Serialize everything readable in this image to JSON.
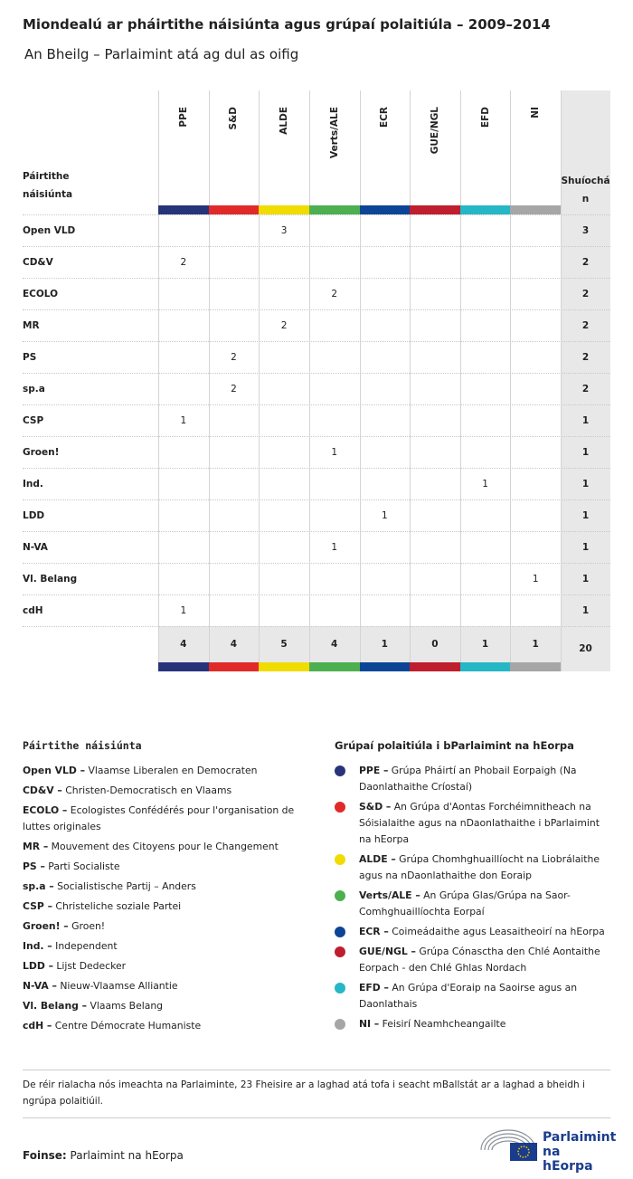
{
  "header": {
    "title": "Miondealú ar pháirtithe náisiúnta agus grúpaí polaitiúla – 2009–2014",
    "subtitle": "An Bheilg – Parlaimint atá ag dul as oifig"
  },
  "table": {
    "corner": "Páirtithe náisiúnta",
    "total_header": "Shuíochán",
    "groups": [
      {
        "name": "PPE",
        "color": "#27347a"
      },
      {
        "name": "S&D",
        "color": "#e02a2a"
      },
      {
        "name": "ALDE",
        "color": "#f0dc00"
      },
      {
        "name": "Verts/ALE",
        "color": "#4caf50"
      },
      {
        "name": "ECR",
        "color": "#0c4596"
      },
      {
        "name": "GUE/NGL",
        "color": "#be1e2d"
      },
      {
        "name": "EFD",
        "color": "#25b7c6"
      },
      {
        "name": "NI",
        "color": "#a6a6a6"
      }
    ],
    "rows": [
      {
        "party": "Open VLD",
        "cells": [
          null,
          null,
          3,
          null,
          null,
          null,
          null,
          null
        ],
        "total": 3
      },
      {
        "party": "CD&V",
        "cells": [
          2,
          null,
          null,
          null,
          null,
          null,
          null,
          null
        ],
        "total": 2
      },
      {
        "party": "ECOLO",
        "cells": [
          null,
          null,
          null,
          2,
          null,
          null,
          null,
          null
        ],
        "total": 2
      },
      {
        "party": "MR",
        "cells": [
          null,
          null,
          2,
          null,
          null,
          null,
          null,
          null
        ],
        "total": 2
      },
      {
        "party": "PS",
        "cells": [
          null,
          2,
          null,
          null,
          null,
          null,
          null,
          null
        ],
        "total": 2
      },
      {
        "party": "sp.a",
        "cells": [
          null,
          2,
          null,
          null,
          null,
          null,
          null,
          null
        ],
        "total": 2
      },
      {
        "party": "CSP",
        "cells": [
          1,
          null,
          null,
          null,
          null,
          null,
          null,
          null
        ],
        "total": 1
      },
      {
        "party": "Groen!",
        "cells": [
          null,
          null,
          null,
          1,
          null,
          null,
          null,
          null
        ],
        "total": 1
      },
      {
        "party": "Ind.",
        "cells": [
          null,
          null,
          null,
          null,
          null,
          null,
          1,
          null
        ],
        "total": 1
      },
      {
        "party": "LDD",
        "cells": [
          null,
          null,
          null,
          null,
          1,
          null,
          null,
          null
        ],
        "total": 1
      },
      {
        "party": "N-VA",
        "cells": [
          null,
          null,
          null,
          1,
          null,
          null,
          null,
          null
        ],
        "total": 1
      },
      {
        "party": "Vl. Belang",
        "cells": [
          null,
          null,
          null,
          null,
          null,
          null,
          null,
          1
        ],
        "total": 1
      },
      {
        "party": "cdH",
        "cells": [
          1,
          null,
          null,
          null,
          null,
          null,
          null,
          null
        ],
        "total": 1
      }
    ],
    "totals": [
      4,
      4,
      5,
      4,
      1,
      0,
      1,
      1
    ],
    "grand_total": 20
  },
  "legend_parties": {
    "title": "Páirtithe náisiúnta",
    "items": [
      {
        "abbr": "Open VLD –",
        "name": "Vlaamse Liberalen en Democraten"
      },
      {
        "abbr": "CD&V –",
        "name": "Christen-Democratisch en Vlaams"
      },
      {
        "abbr": "ECOLO –",
        "name": "Ecologistes Confédérés pour l'organisation de luttes originales"
      },
      {
        "abbr": "MR –",
        "name": "Mouvement des Citoyens pour le Changement"
      },
      {
        "abbr": "PS –",
        "name": "Parti Socialiste"
      },
      {
        "abbr": "sp.a –",
        "name": "Socialistische Partij – Anders"
      },
      {
        "abbr": "CSP –",
        "name": "Christeliche soziale Partei"
      },
      {
        "abbr": "Groen! –",
        "name": "Groen!"
      },
      {
        "abbr": "Ind. –",
        "name": "Independent"
      },
      {
        "abbr": "LDD –",
        "name": "Lijst Dedecker"
      },
      {
        "abbr": "N-VA –",
        "name": "Nieuw-Vlaamse Alliantie"
      },
      {
        "abbr": "Vl. Belang –",
        "name": "Vlaams Belang"
      },
      {
        "abbr": "cdH –",
        "name": "Centre Démocrate Humaniste"
      }
    ]
  },
  "legend_groups": {
    "title": "Grúpaí polaitiúla i bParlaimint na hEorpa",
    "items": [
      {
        "abbr": "PPE –",
        "name": "Grúpa Pháirtí an Phobail Eorpaigh (Na Daonlathaithe Críostaí)",
        "color": "#27347a"
      },
      {
        "abbr": "S&D –",
        "name": "An Grúpa d'Aontas Forchéimnitheach na Sóisialaithe agus na nDaonlathaithe i bParlaimint na hEorpa",
        "color": "#e02a2a"
      },
      {
        "abbr": "ALDE –",
        "name": "Grúpa Chomhghuaillíocht na Liobrálaithe agus na nDaonlathaithe don Eoraip",
        "color": "#f0dc00"
      },
      {
        "abbr": "Verts/ALE –",
        "name": "An Grúpa Glas/Grúpa na Saor-Comhghuaillíochta Eorpaí",
        "color": "#4caf50"
      },
      {
        "abbr": "ECR –",
        "name": "Coimeádaithe agus Leasaitheoirí na hEorpa",
        "color": "#0c4596"
      },
      {
        "abbr": "GUE/NGL –",
        "name": "Grúpa Cónasctha den Chlé Aontaithe Eorpach - den Chlé Ghlas Nordach",
        "color": "#be1e2d"
      },
      {
        "abbr": "EFD –",
        "name": "An Grúpa d'Eoraip na Saoirse agus an Daonlathais",
        "color": "#25b7c6"
      },
      {
        "abbr": "NI –",
        "name": "Feisirí Neamhcheangailte",
        "color": "#a6a6a6"
      }
    ]
  },
  "note": "De réir rialacha nós imeachta na Parlaiminte, 23 Fheisire ar a laghad atá tofa i seacht mBallstát ar a laghad a bheidh i ngrúpa polaitiúil.",
  "source": {
    "label": "Foinse:",
    "text": "Parlaimint na hEorpa"
  },
  "logo": "Parlaimint na hEorpa"
}
